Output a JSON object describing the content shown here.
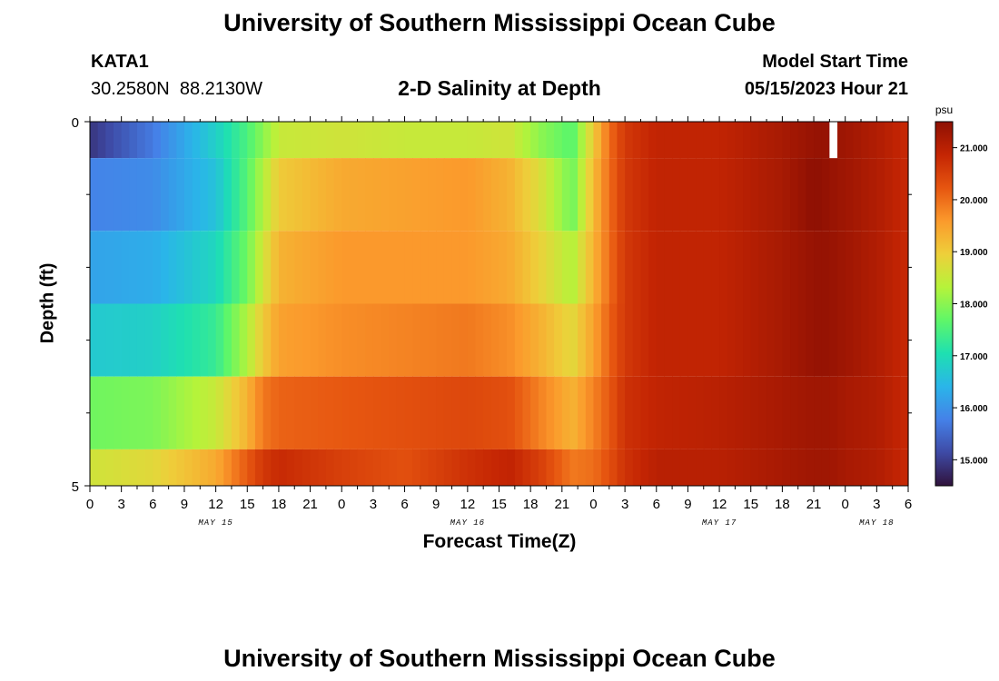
{
  "header": {
    "title_top": "University of Southern Mississippi Ocean Cube",
    "title_bottom": "University of Southern Mississippi Ocean Cube",
    "station_id": "KATA1",
    "station_coords": "30.2580N  88.2130W",
    "model_start_label": "Model Start Time",
    "model_start_value": "05/15/2023 Hour 21"
  },
  "chart_data": {
    "type": "heatmap",
    "title": "2-D Salinity at Depth",
    "xlabel": "Forecast Time(Z)",
    "ylabel": "Depth (ft)",
    "ylim": [
      0,
      5
    ],
    "y_ticks": [
      "0",
      "5"
    ],
    "x_tick_labels": [
      "0",
      "3",
      "6",
      "9",
      "12",
      "15",
      "18",
      "21",
      "0",
      "3",
      "6",
      "9",
      "12",
      "15",
      "18",
      "21",
      "0",
      "3",
      "6",
      "9",
      "12",
      "15",
      "18",
      "21",
      "0",
      "3",
      "6"
    ],
    "date_labels": [
      {
        "label": "MAY 15",
        "hour": 12
      },
      {
        "label": "MAY 16",
        "hour": 36
      },
      {
        "label": "MAY 17",
        "hour": 60
      },
      {
        "label": "MAY 18",
        "hour": 75
      }
    ],
    "x_range_hours": [
      0,
      78
    ],
    "colorbar": {
      "unit": "psu",
      "min": 14.5,
      "max": 21.5,
      "tick_labels": [
        "15.000",
        "16.000",
        "17.000",
        "18.000",
        "19.000",
        "20.000",
        "21.000"
      ],
      "tick_values": [
        15,
        16,
        17,
        18,
        19,
        20,
        21
      ],
      "colors": [
        "#30123b",
        "#3e4aa5",
        "#4581e8",
        "#2ab5e9",
        "#1ee0b1",
        "#5ff668",
        "#b6f33a",
        "#eecf3a",
        "#fb9a2c",
        "#e65510",
        "#c42503",
        "#8e1003"
      ]
    },
    "depth_bands": [
      [
        0,
        0.5
      ],
      [
        0.5,
        1.5
      ],
      [
        1.5,
        2.5
      ],
      [
        2.5,
        3.5
      ],
      [
        3.5,
        4.5
      ],
      [
        4.5,
        5
      ]
    ],
    "times": [
      0,
      6,
      12,
      15,
      16.5,
      18,
      24,
      30,
      36,
      40,
      43,
      46,
      48,
      49.5,
      51,
      54,
      60,
      66,
      69,
      70.5,
      72,
      75,
      78
    ],
    "salinity": [
      [
        14.9,
        15.7,
        16.8,
        17.5,
        18.0,
        18.5,
        18.6,
        18.5,
        18.5,
        18.6,
        18.0,
        17.6,
        19.0,
        20.0,
        20.6,
        20.9,
        20.9,
        21.2,
        21.4,
        21.4,
        21.3,
        21.1,
        20.8
      ],
      [
        15.8,
        15.9,
        16.6,
        17.6,
        18.3,
        19.0,
        19.4,
        19.5,
        19.6,
        19.3,
        18.7,
        17.8,
        19.2,
        20.0,
        20.6,
        20.9,
        20.9,
        21.2,
        21.5,
        21.4,
        21.3,
        21.1,
        20.8
      ],
      [
        16.2,
        16.3,
        16.9,
        17.8,
        18.6,
        19.3,
        19.6,
        19.6,
        19.6,
        19.4,
        18.9,
        18.3,
        19.3,
        20.0,
        20.6,
        20.9,
        20.9,
        21.2,
        21.4,
        21.4,
        21.3,
        21.1,
        20.8
      ],
      [
        16.7,
        16.8,
        17.3,
        18.3,
        19.0,
        19.5,
        19.7,
        19.8,
        19.9,
        19.7,
        19.3,
        18.8,
        19.5,
        20.1,
        20.6,
        20.9,
        20.9,
        21.2,
        21.4,
        21.4,
        21.3,
        21.1,
        20.8
      ],
      [
        17.8,
        17.9,
        18.5,
        19.3,
        19.9,
        20.1,
        20.2,
        20.3,
        20.4,
        20.3,
        19.8,
        19.3,
        19.8,
        20.2,
        20.7,
        20.9,
        21.0,
        21.2,
        21.3,
        21.3,
        21.2,
        21.1,
        20.8
      ],
      [
        18.6,
        18.8,
        19.4,
        20.2,
        20.6,
        20.8,
        20.5,
        20.3,
        20.7,
        20.9,
        20.5,
        19.9,
        20.0,
        20.3,
        20.7,
        21.0,
        21.0,
        21.2,
        21.3,
        21.3,
        21.2,
        21.1,
        20.8
      ]
    ],
    "missing_cells": [
      {
        "hour_start": 70.5,
        "hour_end": 71.25,
        "depth_start": 0,
        "depth_end": 0.5
      }
    ]
  }
}
